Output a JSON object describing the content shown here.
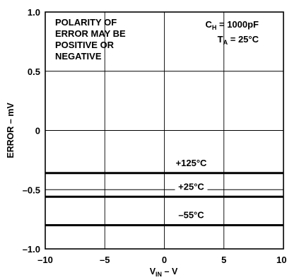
{
  "chart_data": {
    "type": "line",
    "title": "",
    "xlabel": {
      "main": "V",
      "sub": "IN",
      "tail": " – V"
    },
    "ylabel": "ERROR – mV",
    "xlim": [
      -10,
      10
    ],
    "ylim": [
      -1.0,
      1.0
    ],
    "x_ticks": [
      {
        "value": -10,
        "label": "–10"
      },
      {
        "value": -5,
        "label": "–5"
      },
      {
        "value": 0,
        "label": "0"
      },
      {
        "value": 5,
        "label": "5"
      },
      {
        "value": 10,
        "label": "10"
      }
    ],
    "y_ticks": [
      {
        "value": 1.0,
        "label": "1.0"
      },
      {
        "value": 0.5,
        "label": "0.5"
      },
      {
        "value": 0,
        "label": "0"
      },
      {
        "value": -0.5,
        "label": "–0.5"
      },
      {
        "value": -1.0,
        "label": "–1.0"
      }
    ],
    "grid": true,
    "series": [
      {
        "name": "+125°C",
        "x": [
          -10,
          10
        ],
        "y": [
          -0.36,
          -0.36
        ]
      },
      {
        "name": "+25°C",
        "x": [
          -10,
          10
        ],
        "y": [
          -0.56,
          -0.56
        ]
      },
      {
        "name": "–55°C",
        "x": [
          -10,
          10
        ],
        "y": [
          -0.8,
          -0.8
        ]
      }
    ],
    "annotations": {
      "polarity_note": [
        "POLARITY OF",
        "ERROR MAY BE",
        "POSITIVE OR",
        "NEGATIVE"
      ],
      "conditions": [
        {
          "main": "C",
          "sub": "H",
          "tail": " = 1000pF"
        },
        {
          "main": "T",
          "sub": "A",
          "tail": " = 25°C"
        }
      ]
    }
  }
}
